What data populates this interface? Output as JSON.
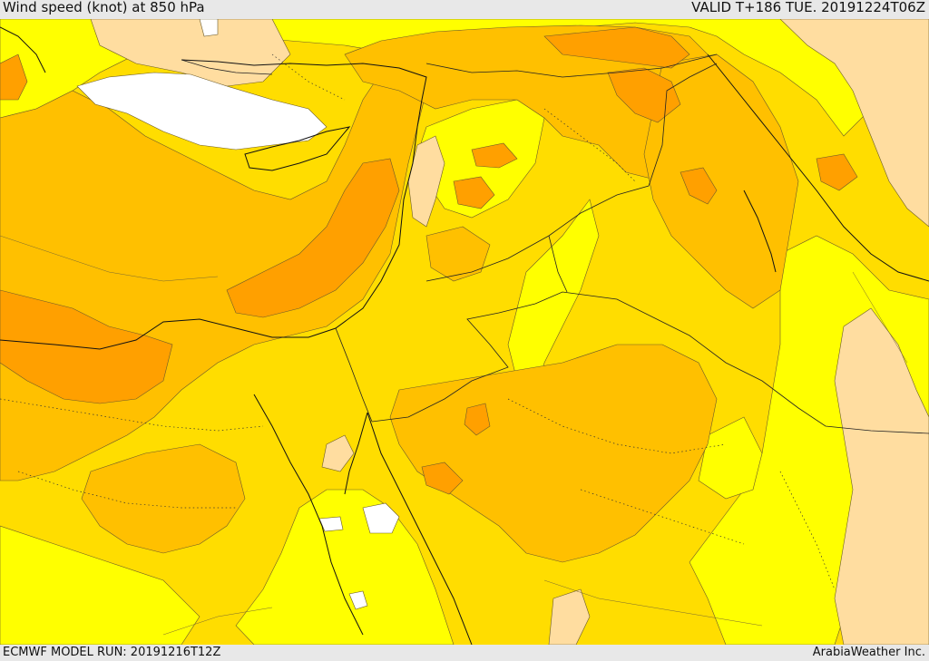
{
  "header": {
    "title": "Wind speed (knot) at 850 hPa",
    "valid": "VALID T+186 TUE. 20191224T06Z"
  },
  "footer": {
    "model_run": "ECMWF MODEL RUN: 20191216T12Z",
    "credit": "ArabiaWeather Inc."
  },
  "map": {
    "palette": {
      "pale": "#ffdda0",
      "yellow": "#ffff00",
      "gold": "#ffdd00",
      "amber": "#ffc000",
      "orange": "#ffa000",
      "white": "#ffffff"
    }
  }
}
